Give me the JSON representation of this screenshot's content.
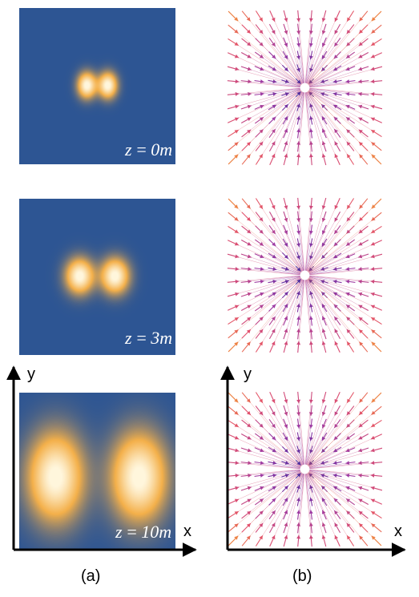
{
  "column_a": {
    "caption": "(a)",
    "panels": [
      {
        "z_label": "z = 0m",
        "z_value": 0
      },
      {
        "z_label": "z = 3m",
        "z_value": 3
      },
      {
        "z_label": "z = 10m",
        "z_value": 10
      }
    ],
    "axis_x_label": "x",
    "axis_y_label": "y"
  },
  "column_b": {
    "caption": "(b)",
    "axis_x_label": "x",
    "axis_y_label": "y"
  },
  "colors": {
    "panel_background": "#2d5593",
    "lobe_core": "#fff6dc",
    "lobe_mid": "#f4b04a",
    "arrow_center": "#3b2a9a",
    "arrow_mid": "#9b3aa5",
    "arrow_outer": "#e2506c",
    "arrow_edge": "#f39a2e"
  }
}
